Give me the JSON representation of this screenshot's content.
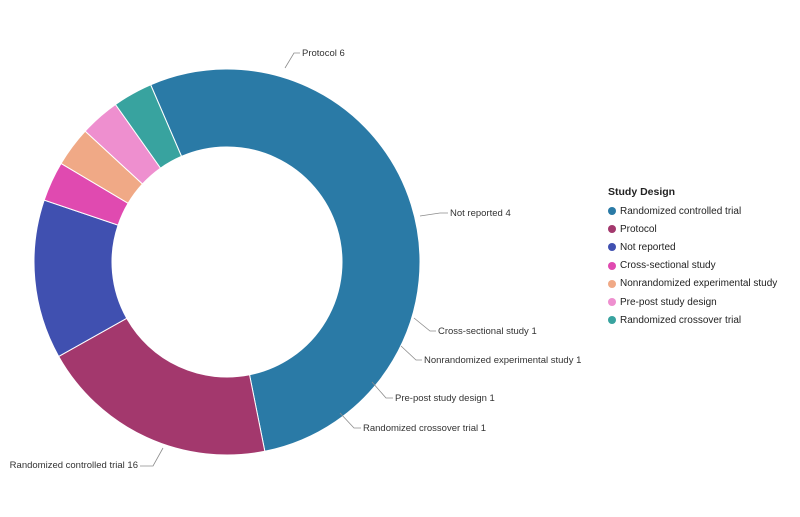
{
  "chart_data": {
    "type": "pie",
    "variant": "donut",
    "categories": [
      "Randomized controlled trial",
      "Protocol",
      "Not reported",
      "Cross-sectional study",
      "Nonrandomized experimental study",
      "Pre-post study design",
      "Randomized crossover trial"
    ],
    "values": [
      16,
      6,
      4,
      1,
      1,
      1,
      1
    ],
    "colors": [
      "#2a7aa6",
      "#a3386d",
      "#4050b0",
      "#e04ab0",
      "#f0a986",
      "#ee8fcf",
      "#38a39f"
    ],
    "data_labels": [
      "Randomized controlled trial 16",
      "Protocol 6",
      "Not reported 4",
      "Cross-sectional study 1",
      "Nonrandomized experimental study 1",
      "Pre-post study design 1",
      "Randomized crossover trial 1"
    ],
    "legend": {
      "title": "Study Design",
      "placement": "right",
      "entries": [
        "Randomized controlled trial",
        "Protocol",
        "Not reported",
        "Cross-sectional study",
        "Nonrandomized experimental study",
        "Pre-post study design",
        "Randomized crossover trial"
      ]
    }
  }
}
